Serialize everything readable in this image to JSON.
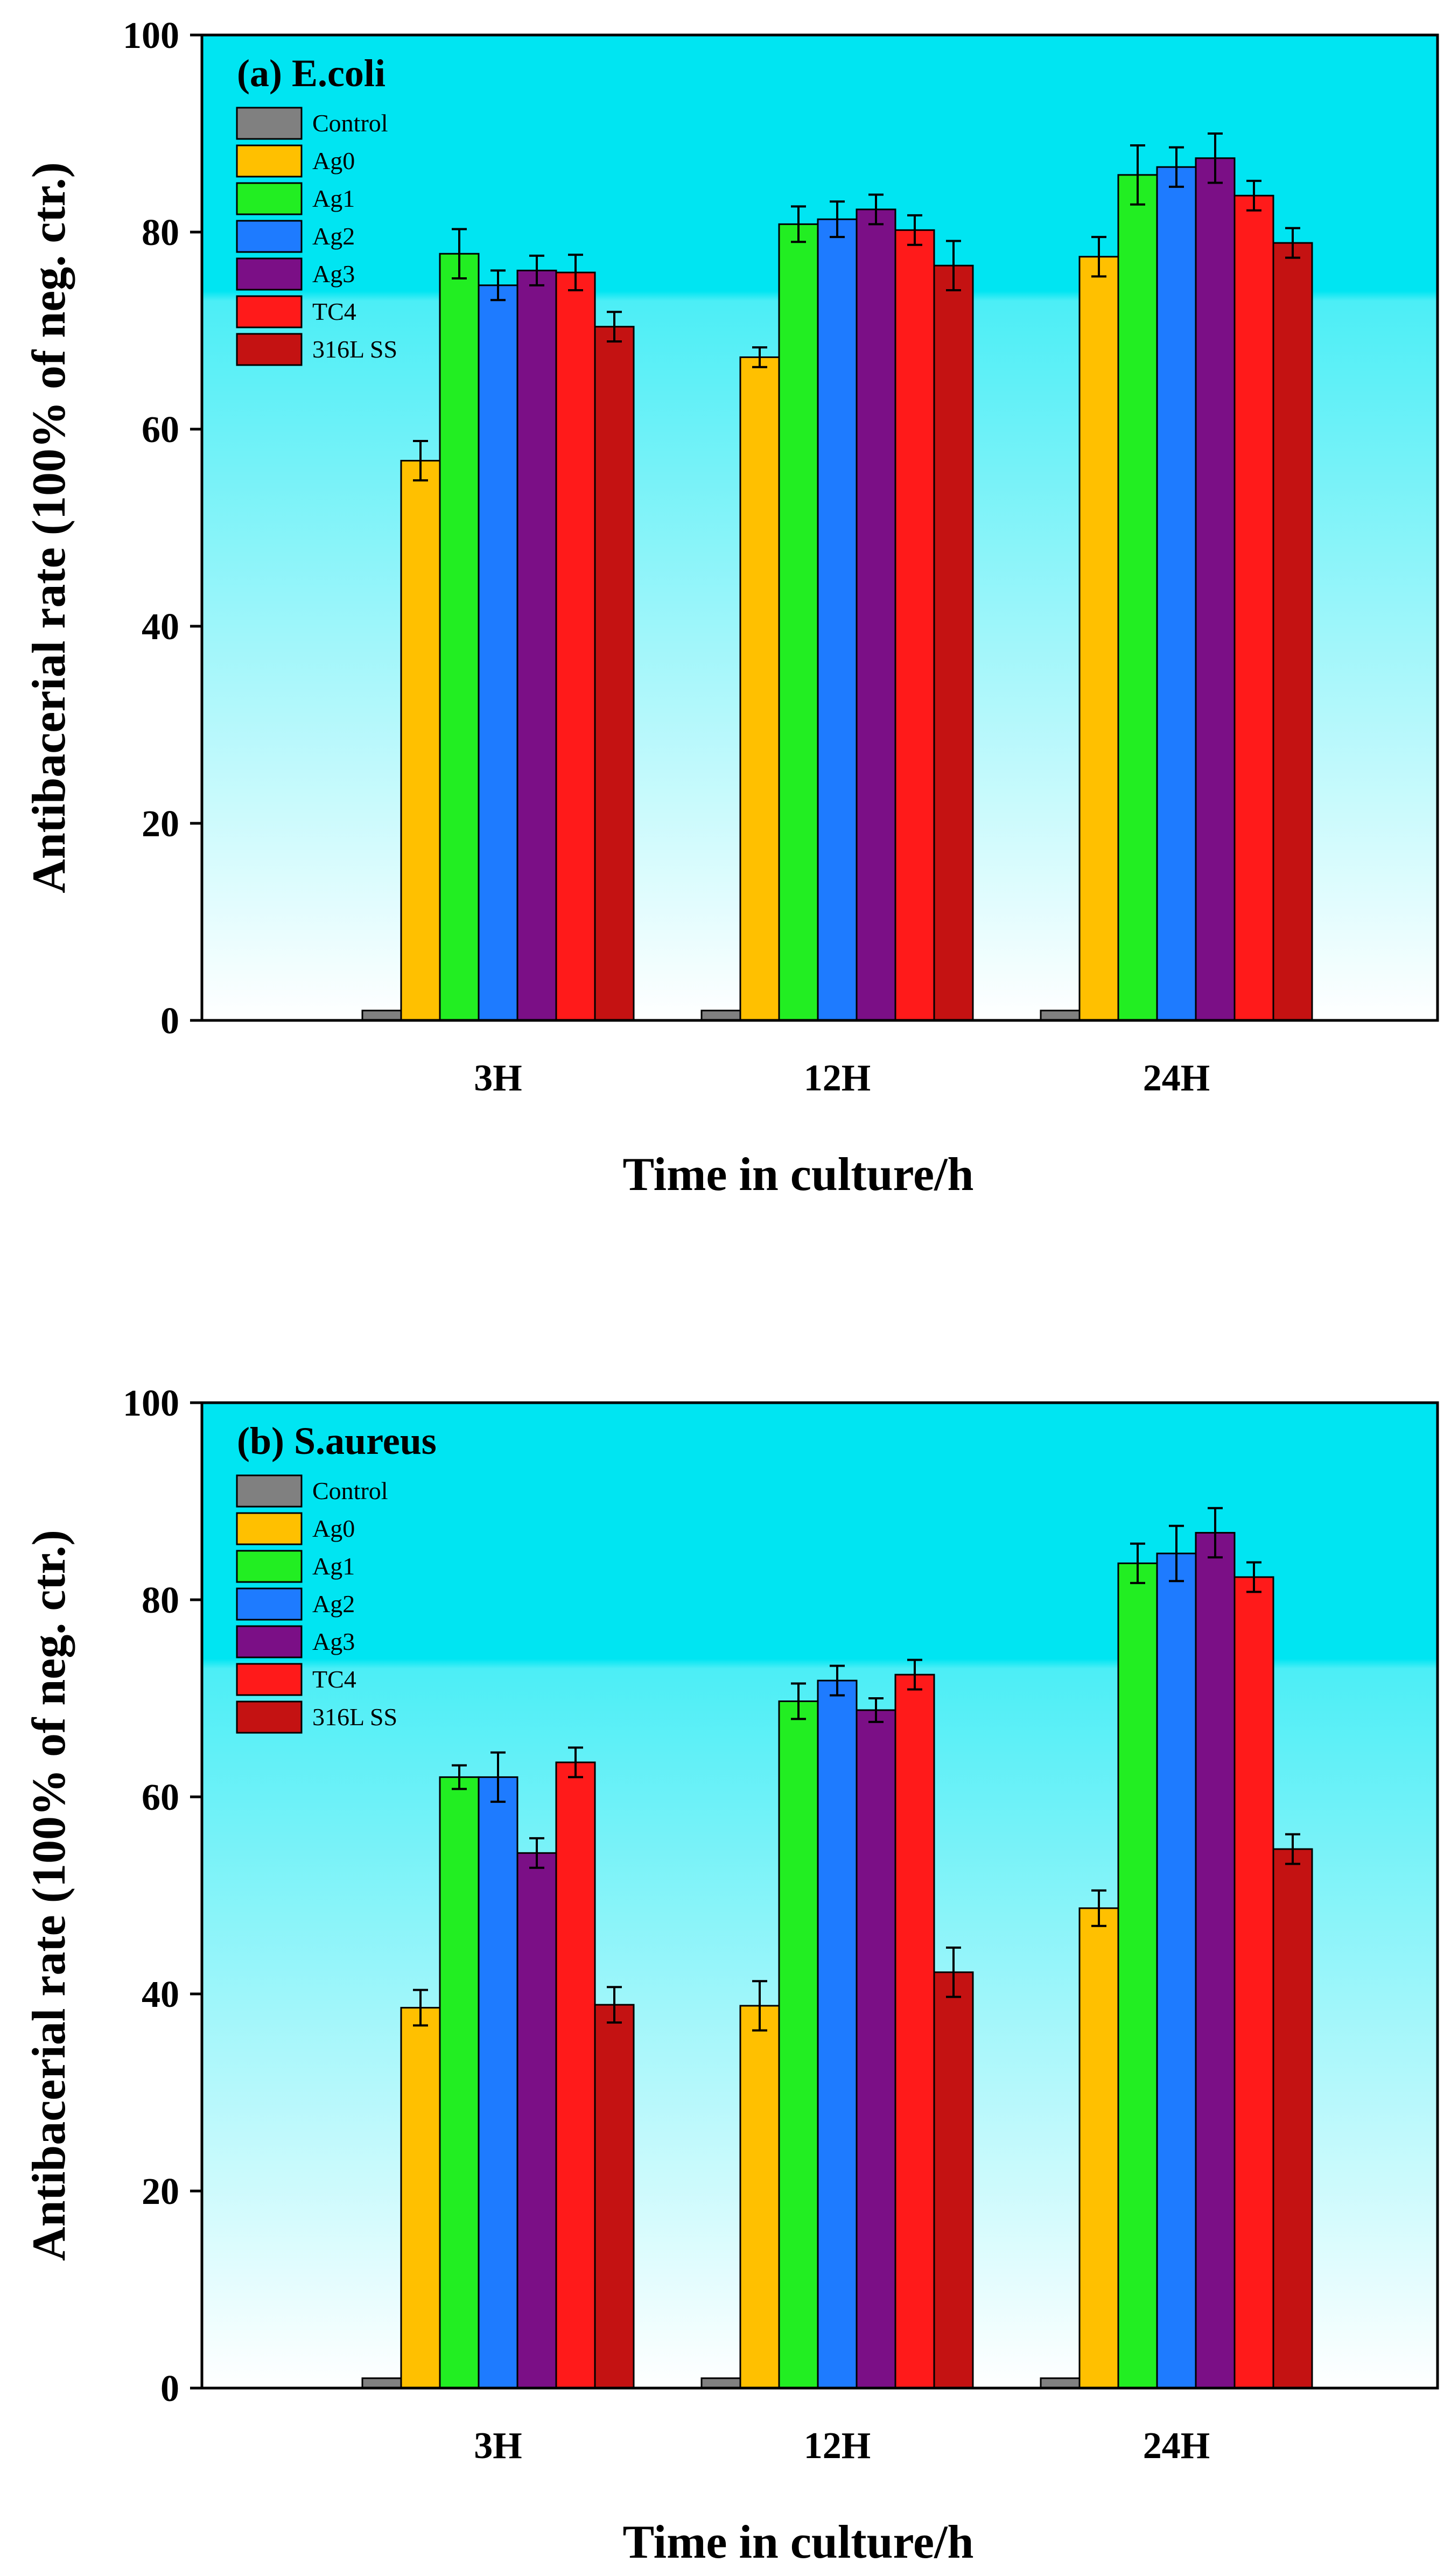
{
  "chart_data": [
    {
      "type": "bar",
      "title": "(a) E.coli",
      "xlabel": "Time in culture/h",
      "ylabel": "Antibacerial rate (100% of neg. ctr.)",
      "ylim": [
        0,
        100
      ],
      "yticks": [
        "0",
        "20",
        "40",
        "60",
        "80",
        "100"
      ],
      "categories": [
        "3H",
        "12H",
        "24H"
      ],
      "legend_position": "top-left",
      "background": "gradient cyan (top) to white (bottom)",
      "series": [
        {
          "name": "Control",
          "color": "#808080",
          "values": [
            1,
            1,
            1
          ],
          "errors": [
            0,
            0,
            0
          ]
        },
        {
          "name": "Ag0",
          "color": "#FFC000",
          "values": [
            56.8,
            67.3,
            77.5
          ],
          "errors": [
            2.0,
            1.0,
            2.0
          ]
        },
        {
          "name": "Ag1",
          "color": "#22EE22",
          "values": [
            77.8,
            80.8,
            85.8
          ],
          "errors": [
            2.5,
            1.8,
            3.0
          ]
        },
        {
          "name": "Ag2",
          "color": "#1E7BFF",
          "values": [
            74.6,
            81.3,
            86.6
          ],
          "errors": [
            1.5,
            1.8,
            2.0
          ]
        },
        {
          "name": "Ag3",
          "color": "#7B0F86",
          "values": [
            76.1,
            82.3,
            87.5
          ],
          "errors": [
            1.5,
            1.5,
            2.5
          ]
        },
        {
          "name": "TC4",
          "color": "#FF1A1A",
          "values": [
            75.9,
            80.2,
            83.7
          ],
          "errors": [
            1.8,
            1.5,
            1.5
          ]
        },
        {
          "name": "316L SS",
          "color": "#C41212",
          "values": [
            70.4,
            76.6,
            78.9
          ],
          "errors": [
            1.5,
            2.5,
            1.5
          ]
        }
      ]
    },
    {
      "type": "bar",
      "title": "(b) S.aureus",
      "xlabel": "Time in culture/h",
      "ylabel": "Antibacerial rate (100% of neg. ctr.)",
      "ylim": [
        0,
        100
      ],
      "yticks": [
        "0",
        "20",
        "40",
        "60",
        "80",
        "100"
      ],
      "categories": [
        "3H",
        "12H",
        "24H"
      ],
      "legend_position": "top-left",
      "background": "gradient cyan (top) to white (bottom)",
      "series": [
        {
          "name": "Control",
          "color": "#808080",
          "values": [
            1,
            1,
            1
          ],
          "errors": [
            0,
            0,
            0
          ]
        },
        {
          "name": "Ag0",
          "color": "#FFC000",
          "values": [
            38.6,
            38.8,
            48.7
          ],
          "errors": [
            1.8,
            2.5,
            1.8
          ]
        },
        {
          "name": "Ag1",
          "color": "#22EE22",
          "values": [
            62.0,
            69.7,
            83.7
          ],
          "errors": [
            1.2,
            1.8,
            2.0
          ]
        },
        {
          "name": "Ag2",
          "color": "#1E7BFF",
          "values": [
            62.0,
            71.8,
            84.7
          ],
          "errors": [
            2.5,
            1.5,
            2.8
          ]
        },
        {
          "name": "Ag3",
          "color": "#7B0F86",
          "values": [
            54.3,
            68.8,
            86.8
          ],
          "errors": [
            1.5,
            1.2,
            2.5
          ]
        },
        {
          "name": "TC4",
          "color": "#FF1A1A",
          "values": [
            63.5,
            72.4,
            82.3
          ],
          "errors": [
            1.5,
            1.5,
            1.5
          ]
        },
        {
          "name": "316L SS",
          "color": "#C41212",
          "values": [
            38.9,
            42.2,
            54.7
          ],
          "errors": [
            1.8,
            2.5,
            1.5
          ]
        }
      ]
    }
  ]
}
